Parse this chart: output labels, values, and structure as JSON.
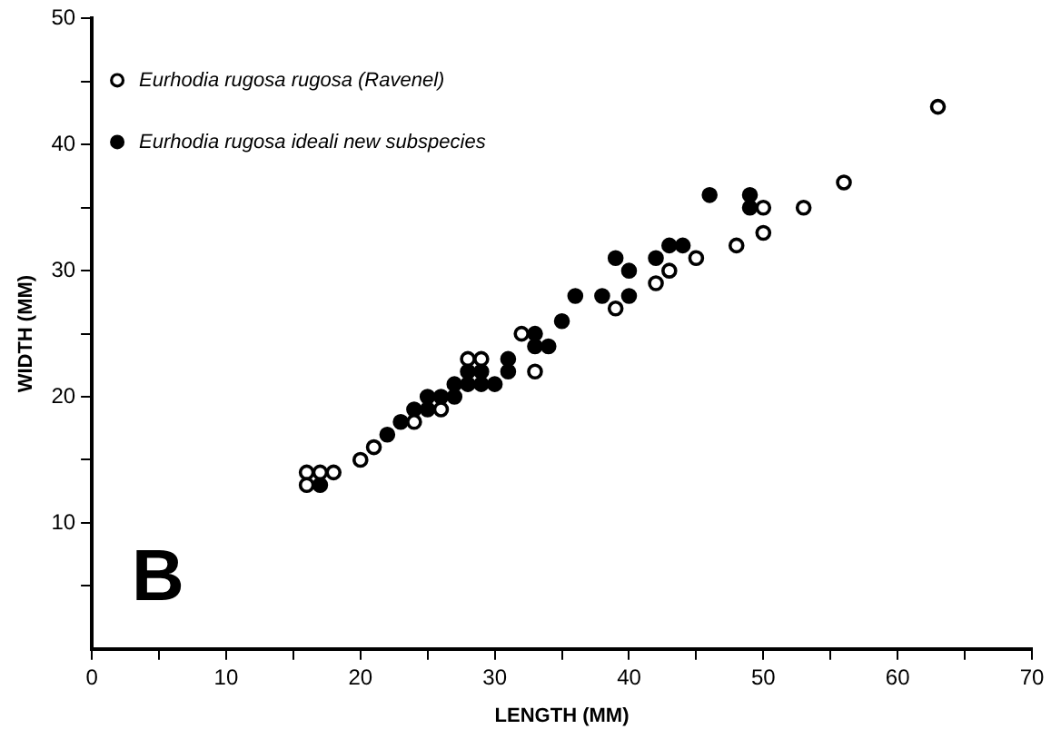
{
  "chart_data": {
    "type": "scatter",
    "xlabel": "LENGTH (MM)",
    "ylabel": "WIDTH (MM)",
    "annotations": [
      "B"
    ],
    "xlim": [
      0,
      70
    ],
    "ylim": [
      0,
      50
    ],
    "xticks": [
      0,
      {
        "value": 5,
        "label": null
      },
      10,
      {
        "value": 15,
        "label": null
      },
      20,
      {
        "value": 25,
        "label": null
      },
      30,
      {
        "value": 35,
        "label": null
      },
      40,
      {
        "value": 45,
        "label": null
      },
      50,
      {
        "value": 55,
        "label": null
      },
      60,
      {
        "value": 65,
        "label": null
      },
      70
    ],
    "yticks": [
      {
        "value": 5,
        "label": null
      },
      10,
      {
        "value": 15,
        "label": null
      },
      20,
      {
        "value": 25,
        "label": null
      },
      30,
      {
        "value": 35,
        "label": null
      },
      40,
      {
        "value": 45,
        "label": null
      },
      50
    ],
    "grid": false,
    "legend": "top left",
    "marker": "circle",
    "series": [
      {
        "name": "Eurhodia rugosa rugosa (Ravenel)",
        "color": "#000000",
        "x": [
          16,
          16,
          17,
          18,
          20,
          21,
          24,
          26,
          28,
          29,
          32,
          33,
          39,
          42,
          43,
          45,
          48,
          50,
          50,
          53,
          56,
          63
        ],
        "values": [
          14,
          13,
          14,
          14,
          15,
          16,
          18,
          19,
          23,
          23,
          25,
          22,
          27,
          29,
          30,
          31,
          32,
          35,
          33,
          35,
          37,
          43
        ]
      },
      {
        "name": "Eurhodia rugosa ideali new subspecies",
        "color": "#000000",
        "x": [
          17,
          22,
          23,
          24,
          25,
          25,
          26,
          27,
          27,
          28,
          28,
          29,
          29,
          30,
          31,
          31,
          33,
          33,
          34,
          35,
          36,
          38,
          39,
          40,
          40,
          42,
          43,
          44,
          46,
          49,
          49
        ],
        "values": [
          13,
          17,
          18,
          19,
          20,
          19,
          20,
          20,
          21,
          22,
          21,
          22,
          21,
          21,
          23,
          22,
          25,
          24,
          24,
          26,
          28,
          28,
          31,
          28,
          30,
          31,
          32,
          32,
          36,
          36,
          35
        ]
      }
    ]
  }
}
